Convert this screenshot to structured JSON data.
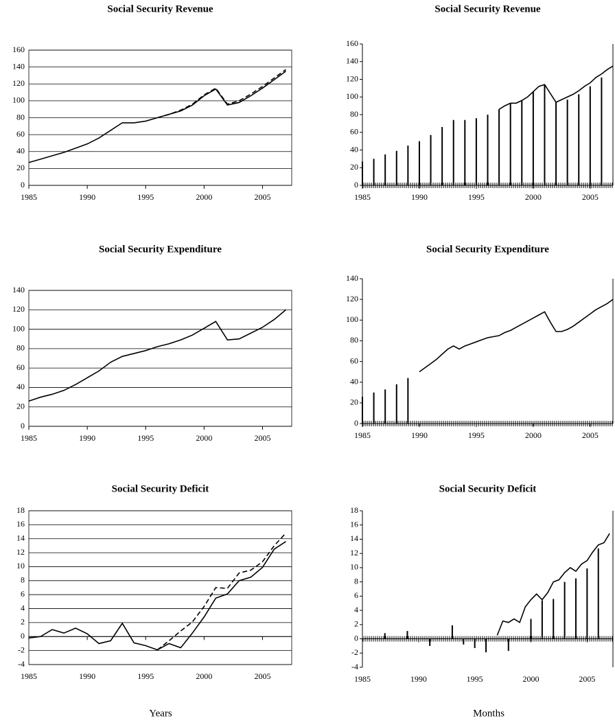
{
  "captions": [
    "Years",
    "Months"
  ],
  "chart_data": [
    {
      "type": "line",
      "title": "Social Security Revenue",
      "grid": true,
      "x": [
        1985,
        1986,
        1987,
        1988,
        1989,
        1990,
        1991,
        1992,
        1993,
        1994,
        1995,
        1996,
        1997,
        1998,
        1999,
        2000,
        2001,
        2002,
        2003,
        2004,
        2005,
        2006,
        2007
      ],
      "series": [
        {
          "values": [
            27,
            31,
            35,
            39,
            44,
            49,
            56,
            65,
            74,
            74,
            76,
            80,
            84,
            88,
            95,
            106,
            114,
            95,
            98,
            106,
            115,
            125,
            135
          ],
          "color": "#000",
          "dash": false
        },
        {
          "values": [
            null,
            null,
            null,
            null,
            null,
            null,
            null,
            null,
            null,
            null,
            null,
            80,
            84,
            89,
            96,
            107,
            115,
            96,
            100,
            108,
            117,
            127,
            137
          ],
          "color": "#000",
          "dash": true
        }
      ],
      "xlim": [
        1985,
        2007.5
      ],
      "xticks": [
        1985,
        1990,
        1995,
        2000,
        2005
      ],
      "ylim": [
        0,
        160
      ],
      "yticks": [
        0,
        20,
        40,
        60,
        80,
        100,
        120,
        140,
        160
      ]
    },
    {
      "type": "line",
      "title": "Social Security Revenue",
      "grid": false,
      "series": [
        {
          "style": "spike",
          "x": [
            1985,
            1986,
            1987,
            1988,
            1989,
            1990,
            1991,
            1992,
            1993,
            1994,
            1995,
            1996,
            1997,
            1998,
            1999,
            2000,
            2001,
            2002,
            2003,
            2004,
            2005,
            2006
          ],
          "values": [
            27,
            30,
            35,
            39,
            45,
            50,
            57,
            66,
            74,
            74,
            76,
            80,
            86,
            93,
            96,
            106,
            114,
            94,
            97,
            103,
            112,
            122
          ],
          "color": "#000"
        },
        {
          "x": [
            1997,
            1997.5,
            1998,
            1998.5,
            1999,
            1999.5,
            2000,
            2000.5,
            2001,
            2001.5,
            2002,
            2002.5,
            2003,
            2003.5,
            2004,
            2004.5,
            2005,
            2005.5,
            2006,
            2006.5,
            2007
          ],
          "values": [
            86,
            90,
            93,
            93,
            96,
            100,
            106,
            112,
            114,
            104,
            94,
            97,
            100,
            103,
            107,
            112,
            116,
            122,
            126,
            131,
            135
          ],
          "color": "#000"
        }
      ],
      "xlim": [
        1985,
        2007
      ],
      "xticks": [
        1985,
        1990,
        1995,
        2000,
        2005
      ],
      "ylim": [
        0,
        160
      ],
      "yticks": [
        0,
        20,
        40,
        60,
        80,
        100,
        120,
        140,
        160
      ]
    },
    {
      "type": "line",
      "title": "Social Security Expenditure",
      "grid": true,
      "x": [
        1985,
        1986,
        1987,
        1988,
        1989,
        1990,
        1991,
        1992,
        1993,
        1994,
        1995,
        1996,
        1997,
        1998,
        1999,
        2000,
        2001,
        2002,
        2003,
        2004,
        2005,
        2006,
        2007
      ],
      "series": [
        {
          "values": [
            26,
            30,
            33,
            37,
            43,
            50,
            57,
            66,
            72,
            75,
            78,
            82,
            85,
            89,
            94,
            101,
            108,
            89,
            90,
            96,
            102,
            110,
            120
          ],
          "color": "#000",
          "dash": false
        }
      ],
      "xlim": [
        1985,
        2007.5
      ],
      "xticks": [
        1985,
        1990,
        1995,
        2000,
        2005
      ],
      "ylim": [
        0,
        140
      ],
      "yticks": [
        0,
        20,
        40,
        60,
        80,
        100,
        120,
        140
      ]
    },
    {
      "type": "line",
      "title": "Social Security Expenditure",
      "grid": false,
      "series": [
        {
          "style": "spike",
          "x": [
            1985,
            1986,
            1987,
            1988,
            1989
          ],
          "values": [
            26,
            30,
            33,
            38,
            44
          ],
          "color": "#000"
        },
        {
          "x": [
            1990,
            1990.5,
            1991,
            1991.5,
            1992,
            1992.5,
            1993,
            1993.5,
            1994,
            1994.5,
            1995,
            1995.5,
            1996,
            1996.5,
            1997,
            1997.5,
            1998,
            1998.5,
            1999,
            1999.5,
            2000,
            2000.5,
            2001,
            2001.5,
            2002,
            2002.5,
            2003,
            2003.5,
            2004,
            2004.5,
            2005,
            2005.5,
            2006,
            2006.5,
            2007
          ],
          "values": [
            50,
            54,
            58,
            62,
            67,
            72,
            75,
            72,
            75,
            77,
            79,
            81,
            83,
            84,
            85,
            88,
            90,
            93,
            96,
            99,
            102,
            105,
            108,
            98,
            89,
            89,
            91,
            94,
            98,
            102,
            106,
            110,
            113,
            116,
            120
          ],
          "color": "#000"
        }
      ],
      "xlim": [
        1985,
        2007
      ],
      "xticks": [
        1985,
        1990,
        1995,
        2000,
        2005
      ],
      "ylim": [
        0,
        140
      ],
      "yticks": [
        0,
        20,
        40,
        60,
        80,
        100,
        120,
        140
      ]
    },
    {
      "type": "line",
      "title": "Social Security Deficit",
      "grid": true,
      "x": [
        1985,
        1986,
        1987,
        1988,
        1989,
        1990,
        1991,
        1992,
        1993,
        1994,
        1995,
        1996,
        1997,
        1998,
        1999,
        2000,
        2001,
        2002,
        2003,
        2004,
        2005,
        2006,
        2007
      ],
      "series": [
        {
          "values": [
            -0.2,
            0,
            1,
            0.5,
            1.2,
            0.4,
            -1,
            -0.6,
            1.9,
            -0.9,
            -1.3,
            -1.9,
            -1,
            -1.6,
            0.5,
            2.8,
            5.5,
            6.1,
            8,
            8.5,
            9.9,
            12.5,
            13.6
          ],
          "color": "#000",
          "dash": false
        },
        {
          "values": [
            null,
            null,
            null,
            null,
            null,
            null,
            null,
            null,
            null,
            null,
            null,
            -1.9,
            -0.6,
            0.8,
            2.1,
            4.3,
            7,
            6.9,
            9.1,
            9.5,
            10.7,
            13,
            14.8
          ],
          "color": "#000",
          "dash": true
        }
      ],
      "xlim": [
        1985,
        2007.5
      ],
      "xticks": [
        1985,
        1990,
        1995,
        2000,
        2005
      ],
      "ylim": [
        -4,
        18
      ],
      "yticks": [
        -4,
        -2,
        0,
        2,
        4,
        6,
        8,
        10,
        12,
        14,
        16,
        18
      ]
    },
    {
      "type": "line",
      "title": "Social Security Deficit",
      "grid": false,
      "series": [
        {
          "style": "spike",
          "x": [
            1987,
            1989,
            1991,
            1993,
            1994,
            1995,
            1996,
            1998,
            2000,
            2001,
            2002,
            2003,
            2004,
            2005,
            2006
          ],
          "values": [
            0.8,
            1.1,
            -1,
            1.9,
            -0.8,
            -1.3,
            -1.9,
            -1.7,
            2.8,
            5.4,
            5.6,
            8,
            8.5,
            9.9,
            12.7
          ],
          "color": "#000"
        },
        {
          "x": [
            1997,
            1997.5,
            1998,
            1998.5,
            1999,
            1999.5,
            2000,
            2000.5,
            2001,
            2001.5,
            2002,
            2002.5,
            2003,
            2003.5,
            2004,
            2004.5,
            2005,
            2005.5,
            2006,
            2006.5,
            2007
          ],
          "values": [
            0.5,
            2.5,
            2.3,
            2.8,
            2.3,
            4.5,
            5.5,
            6.3,
            5.5,
            6.5,
            8,
            8.3,
            9.3,
            10,
            9.5,
            10.5,
            11,
            12.2,
            13.2,
            13.5,
            14.8
          ],
          "color": "#000"
        }
      ],
      "xlim": [
        1985,
        2007.3
      ],
      "xticks": [
        1985,
        1990,
        1995,
        2000,
        2005
      ],
      "ylim": [
        -4,
        18
      ],
      "yticks": [
        -4,
        -2,
        0,
        2,
        4,
        6,
        8,
        10,
        12,
        14,
        16,
        18
      ]
    }
  ]
}
